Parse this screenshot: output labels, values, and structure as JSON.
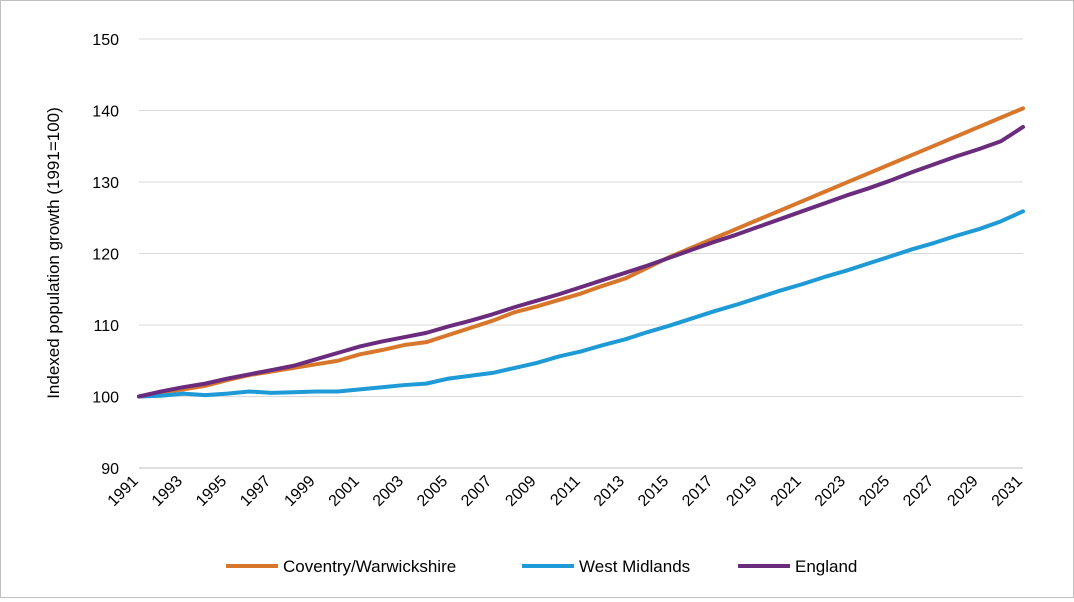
{
  "chart_data": {
    "type": "line",
    "title": "",
    "xlabel": "",
    "ylabel": "Indexed population growth (1991=100)",
    "ylim": [
      90,
      150
    ],
    "yticks": [
      90,
      100,
      110,
      120,
      130,
      140,
      150
    ],
    "xticks": [
      "1991",
      "1993",
      "1995",
      "1997",
      "1999",
      "2001",
      "2003",
      "2005",
      "2007",
      "2009",
      "2011",
      "2013",
      "2015",
      "2017",
      "2019",
      "2021",
      "2023",
      "2025",
      "2027",
      "2029",
      "2031"
    ],
    "grid": "horizontal",
    "legend_position": "bottom",
    "x": [
      1991,
      1992,
      1993,
      1994,
      1995,
      1996,
      1997,
      1998,
      1999,
      2000,
      2001,
      2002,
      2003,
      2004,
      2005,
      2006,
      2007,
      2008,
      2009,
      2010,
      2011,
      2012,
      2013,
      2014,
      2015,
      2016,
      2017,
      2018,
      2019,
      2020,
      2021,
      2022,
      2023,
      2024,
      2025,
      2026,
      2027,
      2028,
      2029,
      2030,
      2031
    ],
    "series": [
      {
        "name": "Coventry/Warwickshire",
        "color": "#d8772b",
        "values": [
          100.0,
          100.6,
          101.0,
          101.5,
          102.3,
          103.0,
          103.5,
          104.0,
          104.5,
          105.0,
          105.9,
          106.5,
          107.2,
          107.6,
          108.6,
          109.6,
          110.6,
          111.8,
          112.6,
          113.5,
          114.4,
          115.5,
          116.5,
          118.0,
          119.5,
          120.8,
          122.1,
          123.4,
          124.7,
          126.0,
          127.3,
          128.6,
          129.9,
          131.2,
          132.5,
          133.8,
          135.1,
          136.4,
          137.7,
          139.0,
          140.3
        ]
      },
      {
        "name": "West Midlands",
        "color": "#1e9ad6",
        "values": [
          100.0,
          100.1,
          100.4,
          100.2,
          100.4,
          100.7,
          100.5,
          100.6,
          100.7,
          100.7,
          101.0,
          101.3,
          101.6,
          101.8,
          102.5,
          102.9,
          103.3,
          104.0,
          104.7,
          105.6,
          106.3,
          107.2,
          108.0,
          109.0,
          109.9,
          110.9,
          111.9,
          112.8,
          113.8,
          114.8,
          115.7,
          116.7,
          117.6,
          118.6,
          119.6,
          120.6,
          121.5,
          122.5,
          123.4,
          124.5,
          125.9
        ]
      },
      {
        "name": "England",
        "color": "#6b2c7e",
        "values": [
          100.0,
          100.7,
          101.3,
          101.8,
          102.5,
          103.1,
          103.7,
          104.3,
          105.2,
          106.1,
          107.0,
          107.7,
          108.3,
          108.9,
          109.8,
          110.6,
          111.5,
          112.5,
          113.4,
          114.3,
          115.3,
          116.3,
          117.3,
          118.3,
          119.4,
          120.5,
          121.6,
          122.6,
          123.7,
          124.8,
          125.9,
          127.0,
          128.1,
          129.1,
          130.2,
          131.4,
          132.5,
          133.6,
          134.6,
          135.7,
          137.7
        ]
      }
    ]
  }
}
